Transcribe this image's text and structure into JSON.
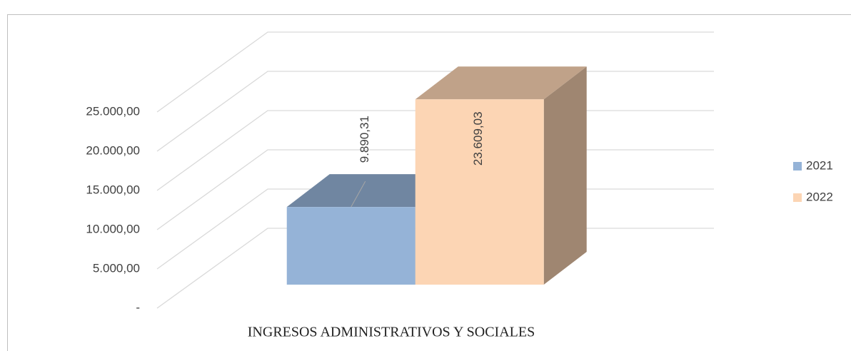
{
  "chart_data": {
    "type": "bar3d",
    "categories": [
      "INGRESOS ADMINISTRATIVOS Y SOCIALES"
    ],
    "series": [
      {
        "name": "2021",
        "color": "#95b3d7",
        "values": [
          9890.31
        ],
        "value_labels": [
          "9.890,31"
        ]
      },
      {
        "name": "2022",
        "color": "#fcd5b4",
        "values": [
          23609.03
        ],
        "value_labels": [
          "23.609,03"
        ]
      }
    ],
    "ylim": [
      0,
      25000
    ],
    "yticks": [
      {
        "value": 0,
        "label": "-"
      },
      {
        "value": 5000,
        "label": "5.000,00"
      },
      {
        "value": 10000,
        "label": "10.000,00"
      },
      {
        "value": 15000,
        "label": "15.000,00"
      },
      {
        "value": 20000,
        "label": "20.000,00"
      },
      {
        "value": 25000,
        "label": "25.000,00"
      }
    ],
    "grid": true,
    "legend": "right"
  }
}
